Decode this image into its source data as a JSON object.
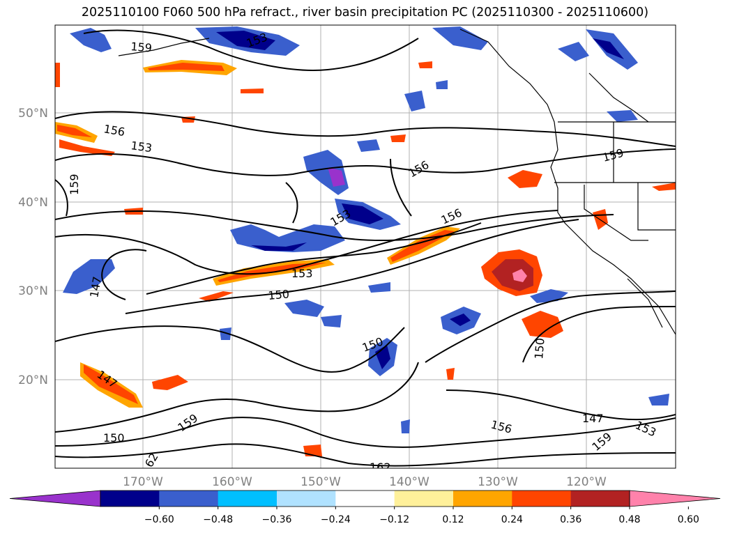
{
  "title": "2025110100 F060 500 hPa refract., river basin precipitation PC (2025110300 - 2025110600)",
  "lat_labels": [
    "50°N",
    "40°N",
    "30°N",
    "20°N"
  ],
  "lon_labels": [
    "170°W",
    "160°W",
    "150°W",
    "140°W",
    "130°W",
    "120°W"
  ],
  "colorbar": {
    "colors": [
      "#9932cc",
      "#00008b",
      "#3a5fcd",
      "#00bfff",
      "#b0e2ff",
      "#ffffff",
      "#fff09a",
      "#ffa500",
      "#ff4500",
      "#b22222",
      "#ff82ab"
    ],
    "ticks": [
      "−0.60",
      "−0.48",
      "−0.36",
      "−0.24",
      "−0.12",
      "0.12",
      "0.24",
      "0.36",
      "0.48",
      "0.60"
    ]
  },
  "contour_labels": [
    {
      "text": "159"
    },
    {
      "text": "156"
    },
    {
      "text": "153"
    },
    {
      "text": "159"
    },
    {
      "text": "156"
    },
    {
      "text": "153"
    },
    {
      "text": "156"
    },
    {
      "text": "153"
    },
    {
      "text": "150"
    },
    {
      "text": "147"
    },
    {
      "text": "150"
    },
    {
      "text": "150"
    },
    {
      "text": "147"
    },
    {
      "text": "150"
    },
    {
      "text": "159"
    },
    {
      "text": "62"
    },
    {
      "text": "162"
    },
    {
      "text": "156"
    },
    {
      "text": "159"
    },
    {
      "text": "147"
    },
    {
      "text": "153"
    },
    {
      "text": "159"
    },
    {
      "text": "153"
    }
  ]
}
